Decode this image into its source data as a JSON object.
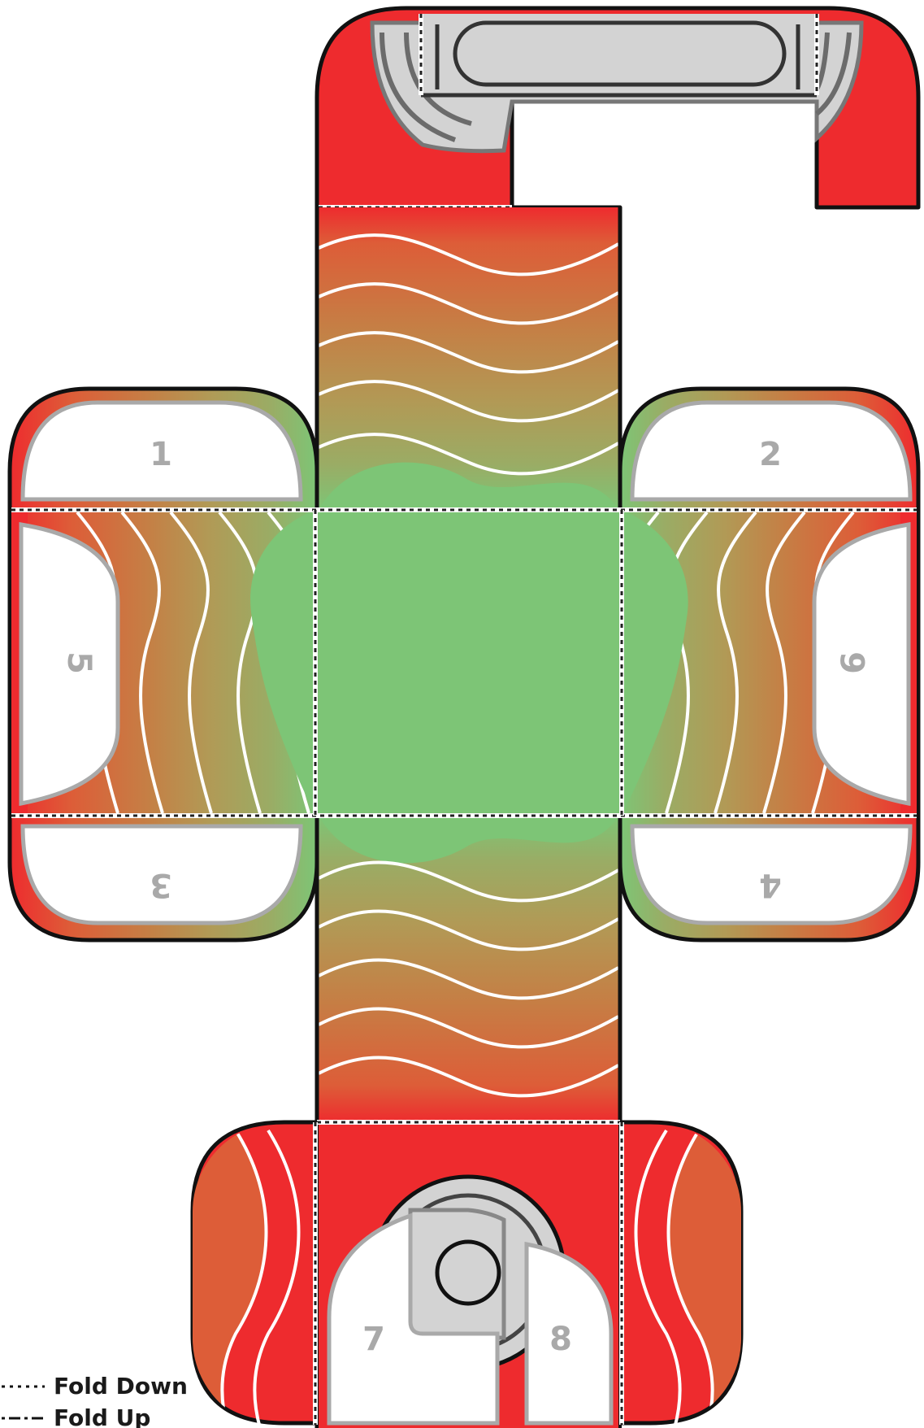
{
  "tabs": [
    {
      "id": "tab-1",
      "label": "1"
    },
    {
      "id": "tab-2",
      "label": "2"
    },
    {
      "id": "tab-3",
      "label": "3"
    },
    {
      "id": "tab-4",
      "label": "4"
    },
    {
      "id": "tab-5",
      "label": "5"
    },
    {
      "id": "tab-6",
      "label": "6"
    },
    {
      "id": "tab-7",
      "label": "7"
    },
    {
      "id": "tab-8",
      "label": "8"
    }
  ],
  "legend": {
    "fold_down": "Fold Down",
    "fold_up": "Fold Up"
  },
  "colors": {
    "red": "#ee2b2e",
    "orange": "#dd5d38",
    "tan": "#c57f45",
    "olive": "#b19a56",
    "sage": "#9aac65",
    "green": "#7dc576",
    "grey": "#d3d3d3",
    "outline": "#111111",
    "tab_text": "#a9a9a9"
  }
}
